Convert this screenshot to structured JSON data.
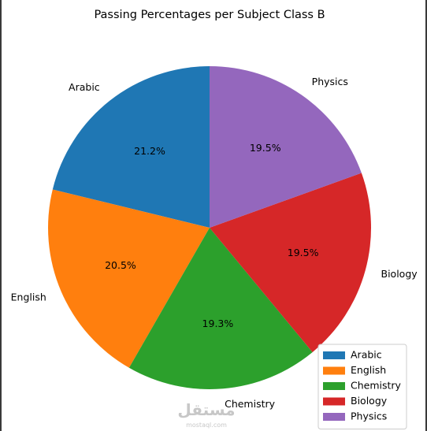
{
  "chart_data": {
    "type": "pie",
    "title": "Passing Percentages per Subject Class B",
    "labels": [
      "Arabic",
      "English",
      "Chemistry",
      "Biology",
      "Physics"
    ],
    "values": [
      21.2,
      20.5,
      19.3,
      19.5,
      19.5
    ],
    "autopct_labels": [
      "21.2%",
      "20.5%",
      "19.3%",
      "19.5%",
      "19.5%"
    ],
    "colors": [
      "#1f77b4",
      "#ff7f0e",
      "#2ca02c",
      "#d62728",
      "#9467bd"
    ],
    "start_angle_deg": 90,
    "direction": "counterclockwise",
    "legend": {
      "placement": "lower-right",
      "entries": [
        "Arabic",
        "English",
        "Chemistry",
        "Biology",
        "Physics"
      ]
    }
  },
  "watermark": {
    "brand_text": "مستقل",
    "site_text": "mostaql.com"
  }
}
